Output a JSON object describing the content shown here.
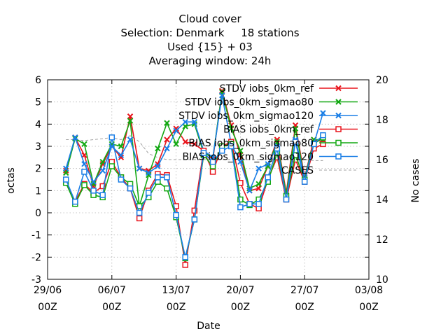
{
  "chart_data": {
    "type": "line",
    "title_lines": [
      "Cloud cover",
      "Selection: Denmark     18 stations",
      "Used {15} + 03",
      "Averaging window: 24h"
    ],
    "xlabel": "Date",
    "ylabel": "octas",
    "y2label": "No cases",
    "xlim": [
      "2023-06-29T00:00",
      "2023-08-03T00:00"
    ],
    "xticks": [
      {
        "at": "2023-06-29T00:00",
        "line1": "29/06",
        "line2": "00Z"
      },
      {
        "at": "2023-07-06T00:00",
        "line1": "06/07",
        "line2": "00Z"
      },
      {
        "at": "2023-07-13T00:00",
        "line1": "13/07",
        "line2": "00Z"
      },
      {
        "at": "2023-07-20T00:00",
        "line1": "20/07",
        "line2": "00Z"
      },
      {
        "at": "2023-07-27T00:00",
        "line1": "27/07",
        "line2": "00Z"
      },
      {
        "at": "2023-08-03T00:00",
        "line1": "03/08",
        "line2": "00Z"
      }
    ],
    "ylim": [
      -3,
      6
    ],
    "yticks": [
      -3,
      -2,
      -1,
      0,
      1,
      2,
      3,
      4,
      5,
      6
    ],
    "y2lim": [
      10,
      20
    ],
    "y2ticks": [
      10,
      12,
      14,
      16,
      18,
      20
    ],
    "grid": true,
    "legend_position": "top-right",
    "x": [
      "2023-07-01T00:00",
      "2023-07-02T00:00",
      "2023-07-03T00:00",
      "2023-07-04T00:00",
      "2023-07-05T00:00",
      "2023-07-06T00:00",
      "2023-07-07T00:00",
      "2023-07-08T00:00",
      "2023-07-09T00:00",
      "2023-07-10T00:00",
      "2023-07-11T00:00",
      "2023-07-12T00:00",
      "2023-07-13T00:00",
      "2023-07-14T00:00",
      "2023-07-15T00:00",
      "2023-07-16T00:00",
      "2023-07-17T00:00",
      "2023-07-18T00:00",
      "2023-07-19T00:00",
      "2023-07-20T00:00",
      "2023-07-21T00:00",
      "2023-07-22T00:00",
      "2023-07-23T00:00",
      "2023-07-24T00:00",
      "2023-07-25T00:00",
      "2023-07-26T00:00",
      "2023-07-27T00:00",
      "2023-07-28T00:00",
      "2023-07-29T00:00"
    ],
    "series": [
      {
        "name": "STDV iobs_0km_ref",
        "axis": "y",
        "color": "#e8141c",
        "marker": "x",
        "values": [
          1.9,
          3.4,
          2.6,
          1.2,
          2.2,
          3.0,
          2.5,
          4.35,
          2.0,
          1.9,
          2.2,
          3.3,
          3.8,
          3.2,
          3.1,
          2.8,
          2.4,
          5.5,
          3.95,
          2.6,
          1.0,
          1.1,
          2.1,
          3.3,
          0.9,
          3.95,
          1.6,
          3.3,
          3.2
        ]
      },
      {
        "name": "STDV iobs_0km_sigmao80",
        "axis": "y",
        "color": "#13a813",
        "marker": "x",
        "values": [
          1.8,
          3.35,
          3.1,
          1.3,
          2.3,
          3.1,
          3.0,
          4.15,
          0.3,
          1.7,
          2.9,
          4.05,
          3.1,
          3.9,
          4.0,
          2.7,
          2.5,
          5.45,
          3.8,
          2.8,
          1.1,
          1.3,
          2.1,
          3.2,
          0.8,
          3.8,
          1.5,
          3.3,
          3.3
        ]
      },
      {
        "name": "STDV iobs_0km_sigmao120",
        "axis": "y",
        "color": "#1a7ee6",
        "marker": "x",
        "values": [
          2.0,
          3.4,
          2.2,
          1.4,
          1.9,
          3.0,
          2.6,
          3.3,
          2.0,
          1.8,
          2.1,
          2.9,
          3.7,
          4.1,
          4.1,
          2.8,
          2.5,
          5.3,
          3.1,
          2.3,
          1.0,
          2.0,
          2.2,
          3.0,
          0.7,
          3.3,
          1.6,
          3.1,
          4.5
        ]
      },
      {
        "name": "BIAS iobs_0km_ref",
        "axis": "y",
        "color": "#e8141c",
        "marker": "square",
        "values": [
          1.4,
          0.5,
          1.3,
          0.9,
          1.2,
          2.3,
          1.6,
          1.1,
          -0.25,
          1.0,
          1.75,
          1.7,
          0.3,
          -2.35,
          0.1,
          2.8,
          1.85,
          3.0,
          3.2,
          1.35,
          0.4,
          0.2,
          1.5,
          2.5,
          0.6,
          2.4,
          1.4,
          2.9,
          3.1
        ]
      },
      {
        "name": "BIAS iobs_0km_sigmao80",
        "axis": "y",
        "color": "#13a813",
        "marker": "square",
        "values": [
          1.35,
          0.4,
          1.25,
          0.8,
          0.7,
          2.1,
          1.6,
          1.3,
          0.3,
          0.7,
          1.4,
          1.1,
          -0.2,
          -2.05,
          -0.3,
          2.6,
          2.1,
          3.0,
          3.1,
          0.6,
          0.35,
          0.6,
          1.4,
          2.7,
          0.75,
          2.6,
          1.5,
          3.1,
          3.4
        ]
      },
      {
        "name": "BIAS iobs_0km_sigmao120",
        "axis": "y",
        "color": "#1a7ee6",
        "marker": "square",
        "values": [
          1.5,
          0.5,
          1.85,
          1.0,
          0.8,
          3.4,
          1.5,
          1.1,
          0.0,
          0.9,
          1.6,
          1.6,
          -0.1,
          -2.0,
          -0.3,
          2.7,
          2.3,
          2.8,
          3.0,
          0.25,
          0.4,
          0.4,
          1.6,
          2.9,
          0.6,
          3.2,
          1.4,
          3.1,
          3.5
        ]
      },
      {
        "name": "CASES",
        "axis": "y2",
        "color": "#a0a0a0",
        "marker": "none",
        "dashed": true,
        "values": [
          17.0,
          17.0,
          16.95,
          17.0,
          17.05,
          17.1,
          17.0,
          17.2,
          16.9,
          16.3,
          16.1,
          16.0,
          16.0,
          16.0,
          16.0,
          16.0,
          16.0,
          16.0,
          16.0,
          16.0,
          16.0,
          16.0,
          16.0,
          16.0,
          16.0,
          16.0,
          16.0,
          15.95,
          15.95
        ]
      }
    ]
  }
}
